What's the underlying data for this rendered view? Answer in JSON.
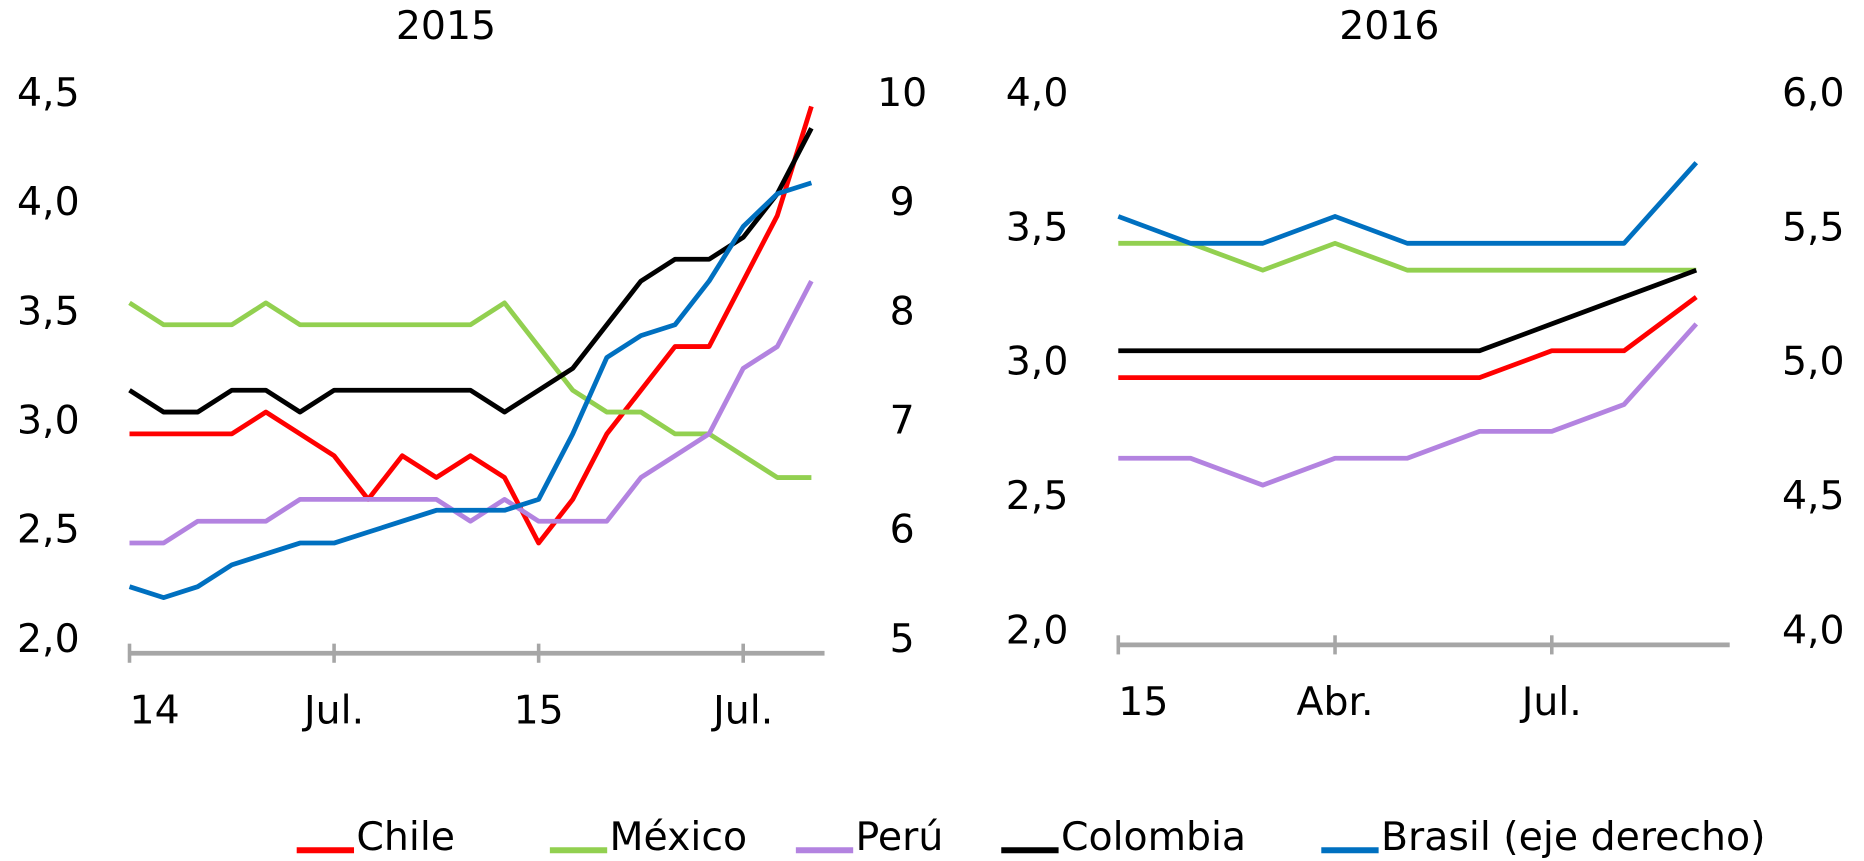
{
  "chart_data": [
    {
      "type": "line",
      "title": "2015",
      "legend": "bottom",
      "categories": [
        "14",
        null,
        null,
        null,
        null,
        null,
        "Jul.",
        null,
        null,
        null,
        null,
        null,
        "15",
        null,
        null,
        null,
        null,
        null,
        "Jul.",
        null,
        null
      ],
      "series": [
        {
          "name": "Chile",
          "color": "#ff0000",
          "values": [
            2.95,
            2.95,
            2.95,
            2.95,
            3.05,
            2.95,
            2.85,
            2.65,
            2.85,
            2.75,
            2.85,
            2.75,
            2.45,
            2.65,
            2.95,
            3.15,
            3.35,
            3.35,
            3.65,
            3.95,
            4.45
          ]
        },
        {
          "name": "México",
          "color": "#92d050",
          "values": [
            3.55,
            3.45,
            3.45,
            3.45,
            3.55,
            3.45,
            3.45,
            3.45,
            3.45,
            3.45,
            3.45,
            3.55,
            3.35,
            3.15,
            3.05,
            3.05,
            2.95,
            2.95,
            2.85,
            2.75,
            2.75
          ]
        },
        {
          "name": "Perú",
          "color": "#b383e0",
          "values": [
            2.45,
            2.45,
            2.55,
            2.55,
            2.55,
            2.65,
            2.65,
            2.65,
            2.65,
            2.65,
            2.55,
            2.65,
            2.55,
            2.55,
            2.55,
            2.75,
            2.85,
            2.95,
            3.25,
            3.35,
            3.65
          ]
        },
        {
          "name": "Colombia",
          "color": "#000000",
          "values": [
            3.15,
            3.05,
            3.05,
            3.15,
            3.15,
            3.05,
            3.15,
            3.15,
            3.15,
            3.15,
            3.15,
            3.05,
            3.15,
            3.25,
            3.45,
            3.65,
            3.75,
            3.75,
            3.85,
            4.05,
            4.35
          ]
        },
        {
          "name": "Brasil (eje derecho)",
          "color": "#0070c0",
          "axis": "y2",
          "values": [
            5.5,
            5.4,
            5.5,
            5.7,
            5.8,
            5.9,
            5.9,
            6.0,
            6.1,
            6.2,
            6.2,
            6.2,
            6.3,
            6.9,
            7.6,
            7.8,
            7.9,
            8.3,
            8.8,
            9.1,
            9.2
          ]
        }
      ],
      "ylim": [
        2.0,
        4.5
      ],
      "yticks": [
        {
          "value": 2.0,
          "label": "2,0"
        },
        {
          "value": 2.5,
          "label": "2,5"
        },
        {
          "value": 3.0,
          "label": "3,0"
        },
        {
          "value": 3.5,
          "label": "3,5"
        },
        {
          "value": 4.0,
          "label": "4,0"
        },
        {
          "value": 4.5,
          "label": "4,5"
        }
      ],
      "y2lim": [
        5,
        10
      ],
      "y2ticks": [
        5,
        6,
        7,
        8,
        9,
        10
      ]
    },
    {
      "type": "line",
      "title": "2016",
      "categories": [
        "15",
        null,
        null,
        "Abr.",
        null,
        null,
        "Jul.",
        null,
        null
      ],
      "series": [
        {
          "name": "Chile",
          "color": "#ff0000",
          "values": [
            2.95,
            2.95,
            2.95,
            2.95,
            2.95,
            2.95,
            3.05,
            3.05,
            3.25
          ]
        },
        {
          "name": "México",
          "color": "#92d050",
          "values": [
            3.45,
            3.45,
            3.35,
            3.45,
            3.35,
            3.35,
            3.35,
            3.35,
            3.35
          ]
        },
        {
          "name": "Perú",
          "color": "#b383e0",
          "values": [
            2.65,
            2.65,
            2.55,
            2.65,
            2.65,
            2.75,
            2.75,
            2.85,
            3.15
          ]
        },
        {
          "name": "Colombia",
          "color": "#000000",
          "values": [
            3.05,
            3.05,
            3.05,
            3.05,
            3.05,
            3.05,
            3.15,
            3.25,
            3.35
          ]
        },
        {
          "name": "Brasil (eje derecho)",
          "color": "#0070c0",
          "axis": "y2",
          "values": [
            5.55,
            5.45,
            5.45,
            5.55,
            5.45,
            5.45,
            5.45,
            5.45,
            5.75
          ]
        }
      ],
      "ylim": [
        2.0,
        4.0
      ],
      "yticks": [
        {
          "value": 2.0,
          "label": "2,0"
        },
        {
          "value": 2.5,
          "label": "2,5"
        },
        {
          "value": 3.0,
          "label": "3,0"
        },
        {
          "value": 3.5,
          "label": "3,5"
        },
        {
          "value": 4.0,
          "label": "4,0"
        }
      ],
      "y2lim": [
        4.0,
        6.0
      ],
      "y2ticks": [
        {
          "value": 4.0,
          "label": "4,0"
        },
        {
          "value": 4.5,
          "label": "4,5"
        },
        {
          "value": 5.0,
          "label": "5,0"
        },
        {
          "value": 5.5,
          "label": "5,5"
        },
        {
          "value": 6.0,
          "label": "6,0"
        }
      ]
    }
  ]
}
